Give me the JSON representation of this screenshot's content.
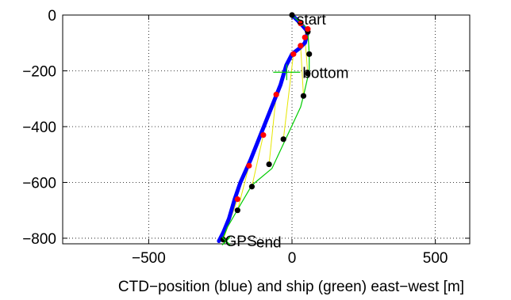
{
  "chart_data": {
    "type": "line",
    "title": "",
    "xlabel": "CTD−position (blue) and ship (green) east−west [m]",
    "ylabel": "",
    "xlim": [
      -800,
      620
    ],
    "ylim": [
      -820,
      0
    ],
    "x_ticks": [
      -500,
      0,
      500
    ],
    "x_tick_labels": [
      "−500",
      "0",
      "500"
    ],
    "y_ticks": [
      0,
      -200,
      -400,
      -600,
      -800
    ],
    "y_tick_labels": [
      "0",
      "−200",
      "−400",
      "−600",
      "−800"
    ],
    "grid": true,
    "grid_style": "dotted",
    "series": [
      {
        "color": "#0000ff",
        "style": "thick-line",
        "x": [
          0,
          30,
          55,
          45,
          25,
          0,
          -20,
          -40,
          -75,
          -110,
          -145,
          -180,
          -200,
          -220,
          -240,
          -255
        ],
        "y": [
          0,
          -30,
          -60,
          -100,
          -120,
          -140,
          -180,
          -250,
          -340,
          -430,
          -520,
          -600,
          -660,
          -730,
          -780,
          -810
        ]
      },
      {
        "color": "#00cc00",
        "style": "thin-line",
        "x": [
          0,
          55,
          60,
          60,
          40,
          30,
          -20,
          -70,
          -140,
          -180,
          -225,
          -245
        ],
        "y": [
          0,
          -50,
          -140,
          -200,
          -290,
          -330,
          -440,
          -550,
          -610,
          -680,
          -760,
          -810
        ]
      }
    ],
    "ctd_markers": {
      "color": "#ff0000",
      "x": [
        30,
        55,
        45,
        30,
        5,
        -55,
        -100,
        -150,
        -190
      ],
      "y": [
        -30,
        -50,
        -80,
        -110,
        -140,
        -285,
        -430,
        -540,
        -660
      ]
    },
    "ship_markers": {
      "color": "#000000",
      "x": [
        0,
        55,
        60,
        55,
        40,
        -30,
        -80,
        -140,
        -190,
        -240
      ],
      "y": [
        0,
        -60,
        -140,
        -210,
        -290,
        -445,
        -535,
        -615,
        -700,
        -805
      ]
    },
    "connector_color": "#e6e600",
    "annotations": [
      {
        "text": "start",
        "x": 5,
        "y": 0
      },
      {
        "text": "bottom",
        "x": -60,
        "y": -205,
        "cross": true
      },
      {
        "text": "end",
        "x": -230,
        "y": -810,
        "cross": true
      },
      {
        "text": "GPS",
        "x": -220,
        "y": -815
      }
    ]
  }
}
